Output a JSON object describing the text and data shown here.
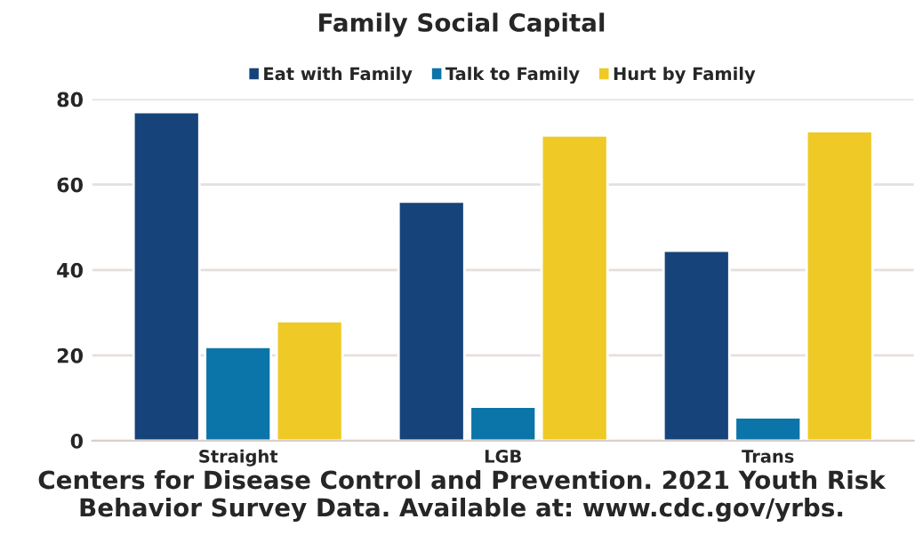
{
  "chart_data": {
    "type": "bar",
    "title": "Family Social Capital",
    "categories": [
      "Straight",
      "LGB",
      "Trans"
    ],
    "series": [
      {
        "name": "Eat with Family",
        "color": "#16437a",
        "values": [
          77,
          56,
          44.5
        ]
      },
      {
        "name": "Talk to Family",
        "color": "#0b74a8",
        "values": [
          22,
          8,
          5.5
        ]
      },
      {
        "name": "Hurt by Family",
        "color": "#efc925",
        "values": [
          28,
          71.5,
          72.5
        ]
      }
    ],
    "ylim": [
      0,
      80
    ],
    "yticks": [
      0,
      20,
      40,
      60,
      80
    ],
    "grid": "y",
    "legend": "top",
    "annotations": [
      "Centers for Disease Control and Prevention. 2021 Youth Risk Behavior Survey Data. Available at: www.cdc.gov/yrbs."
    ]
  }
}
